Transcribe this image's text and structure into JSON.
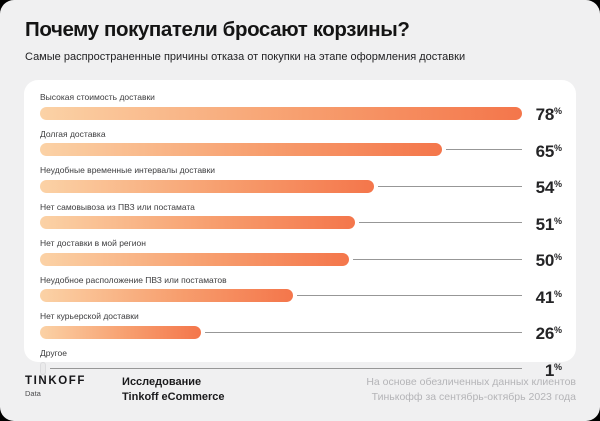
{
  "header": {
    "title": "Почему покупатели бросают корзины?",
    "subtitle": "Самые распространенные причины отказа от покупки на этапе оформления доставки"
  },
  "chart_data": {
    "type": "bar",
    "orientation": "horizontal",
    "categories": [
      "Высокая стоимость доставки",
      "Долгая доставка",
      "Неудобные временные интервалы доставки",
      "Нет самовывоза из ПВЗ или постамата",
      "Нет доставки в мой регион",
      "Неудобное расположение ПВЗ или постаматов",
      "Нет курьерской доставки",
      "Другое"
    ],
    "values": [
      78,
      65,
      54,
      51,
      50,
      41,
      26,
      1
    ],
    "unit": "%",
    "max_scale_value": 78,
    "legend": "none",
    "grid": "off",
    "bar_gradient_start": "#FBD2A6",
    "bar_gradient_end": "#F4764B",
    "other_bar_color": "#EAEAEB",
    "connector_line_color": "#979797"
  },
  "footer": {
    "logo_primary": "TINKOFF",
    "logo_secondary": "Data",
    "source_label_line1": "Исследование",
    "source_label_line2": "Tinkoff eCommerce",
    "note_line1": "На основе обезличенных данных клиентов",
    "note_line2": "Тинькофф за сентябрь-октябрь 2023 года"
  },
  "colors": {
    "page_background": "#F0F0F1",
    "card_background": "#FFFFFF",
    "title_text": "#141414",
    "muted_text": "#B4B4B7"
  }
}
